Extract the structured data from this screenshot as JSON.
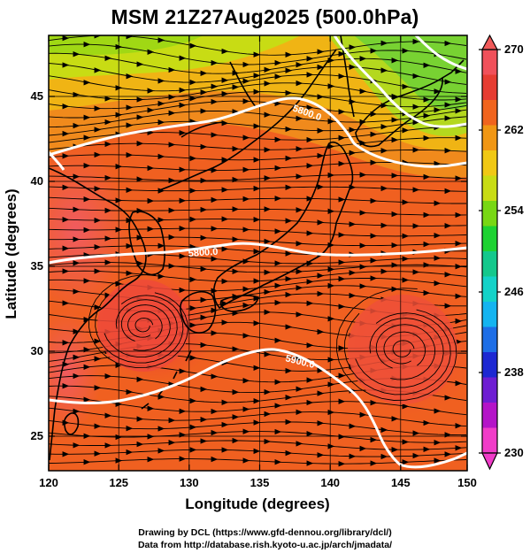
{
  "title": "MSM 21Z27Aug2025 (500.0hPa)",
  "map": {
    "xlabel": "Longitude (degrees)",
    "ylabel": "Latitude  (degrees)",
    "lon_ticks": [
      "120",
      "125",
      "130",
      "135",
      "140",
      "145",
      "150"
    ],
    "lat_ticks": [
      "25",
      "30",
      "35",
      "40",
      "45"
    ],
    "lon_range": [
      120,
      150
    ],
    "lat_range": [
      22.4,
      47.6
    ],
    "grid": true,
    "contour_labels": [
      "5800.0",
      "5800.0",
      "5900.0"
    ]
  },
  "colorbar": {
    "ticks": [
      "270",
      "262",
      "254",
      "246",
      "238",
      "230"
    ],
    "range": [
      230,
      270
    ],
    "colors": [
      "#f03cc8",
      "#b414c8",
      "#6e1ed2",
      "#1e28d2",
      "#1e6ee6",
      "#14b4f0",
      "#14d2c8",
      "#14c88c",
      "#1ed232",
      "#78d714",
      "#c8dc14",
      "#f0c814",
      "#f09614",
      "#f0641e",
      "#e63c32",
      "#f0505a"
    ]
  },
  "footer": {
    "line1": "Drawing by DCL (https://www.gfd-dennou.org/library/dcl/)",
    "line2": "Data from http://database.rish.kyoto-u.ac.jp/arch/jmadata/"
  }
}
